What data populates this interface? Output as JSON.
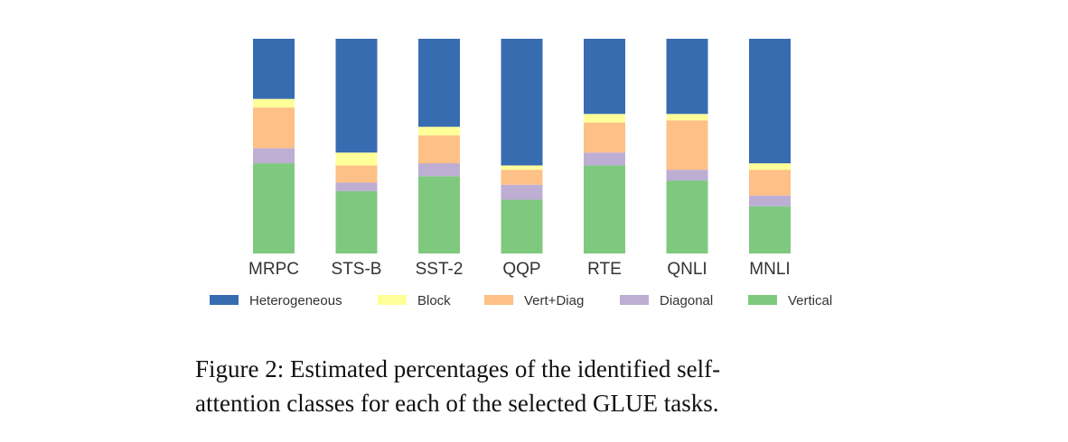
{
  "chart_data": {
    "type": "bar",
    "stacked": true,
    "categories": [
      "MRPC",
      "STS-B",
      "SST-2",
      "QQP",
      "RTE",
      "QNLI",
      "MNLI"
    ],
    "ylim": [
      0,
      100
    ],
    "legend_position": "bottom",
    "series": [
      {
        "name": "Vertical",
        "color": "#7fc97f",
        "values": [
          42,
          29,
          36,
          25,
          41,
          34,
          22
        ]
      },
      {
        "name": "Diagonal",
        "color": "#beaed4",
        "values": [
          7,
          4,
          6,
          7,
          6,
          5,
          5
        ]
      },
      {
        "name": "Vert+Diag",
        "color": "#fdc086",
        "values": [
          19,
          8,
          13,
          7,
          14,
          23,
          12
        ]
      },
      {
        "name": "Block",
        "color": "#ffff99",
        "values": [
          4,
          6,
          4,
          2,
          4,
          3,
          3
        ]
      },
      {
        "name": "Heterogeneous",
        "color": "#386cb0",
        "values": [
          28,
          53,
          41,
          59,
          35,
          35,
          58
        ]
      }
    ],
    "legend_order": [
      "Heterogeneous",
      "Block",
      "Vert+Diag",
      "Diagonal",
      "Vertical"
    ]
  },
  "caption": {
    "lines": [
      "Figure 2: Estimated percentages of the identified self-",
      "attention classes for each of the selected GLUE tasks."
    ]
  }
}
